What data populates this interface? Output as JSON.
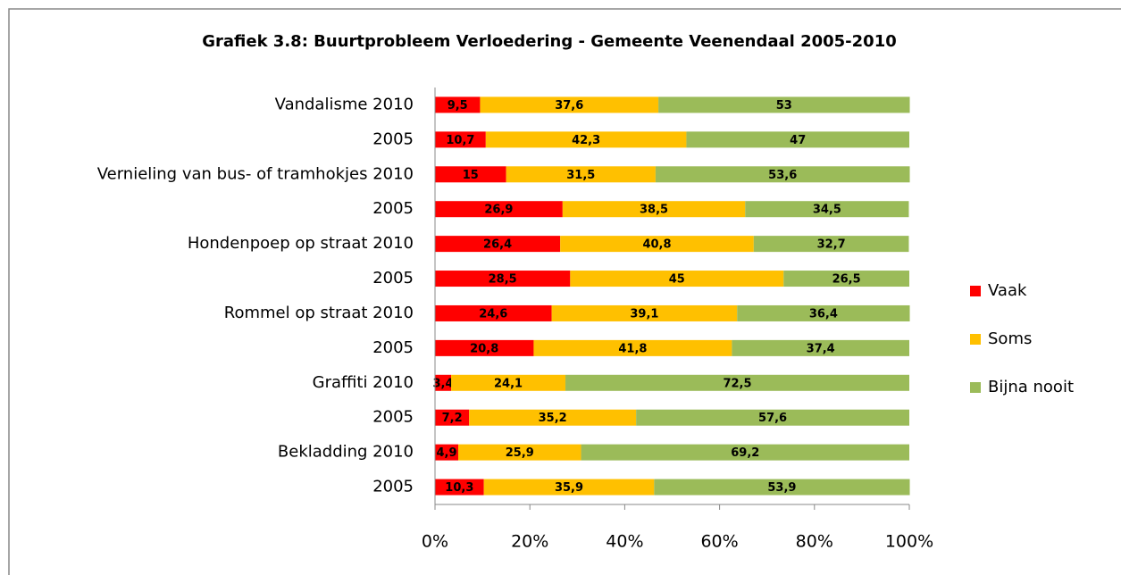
{
  "chart_data": {
    "type": "stacked_bar_horizontal",
    "title": "Grafiek 3.8: Buurtprobleem Verloedering - Gemeente Veenendaal 2005-2010",
    "categories": [
      "Vandalisme 2010",
      "2005",
      "Vernieling van bus- of tramhokjes 2010",
      "2005",
      "Hondenpoep op straat 2010",
      "2005",
      "Rommel op straat 2010",
      "2005",
      "Graffiti 2010",
      "2005",
      "Bekladding 2010",
      "2005"
    ],
    "series": [
      {
        "name": "Vaak",
        "color": "#ff0000",
        "values": [
          9.5,
          10.7,
          15,
          26.9,
          26.4,
          28.5,
          24.6,
          20.8,
          3.4,
          7.2,
          4.9,
          10.3
        ],
        "value_labels": [
          "9,5",
          "10,7",
          "15",
          "26,9",
          "26,4",
          "28,5",
          "24,6",
          "20,8",
          "3,4",
          "7,2",
          "4,9",
          "10,3"
        ]
      },
      {
        "name": "Soms",
        "color": "#ffc000",
        "values": [
          37.6,
          42.3,
          31.5,
          38.5,
          40.8,
          45,
          39.1,
          41.8,
          24.1,
          35.2,
          25.9,
          35.9
        ],
        "value_labels": [
          "37,6",
          "42,3",
          "31,5",
          "38,5",
          "40,8",
          "45",
          "39,1",
          "41,8",
          "24,1",
          "35,2",
          "25,9",
          "35,9"
        ]
      },
      {
        "name": "Bijna nooit",
        "color": "#9bbb59",
        "values": [
          53,
          47,
          53.6,
          34.5,
          32.7,
          26.5,
          36.4,
          37.4,
          72.5,
          57.6,
          69.2,
          53.9
        ],
        "value_labels": [
          "53",
          "47",
          "53,6",
          "34,5",
          "32,7",
          "26,5",
          "36,4",
          "37,4",
          "72,5",
          "57,6",
          "69,2",
          "53,9"
        ]
      }
    ],
    "xlim": [
      0,
      100
    ],
    "xticks": [
      {
        "value": 0,
        "label": "0%"
      },
      {
        "value": 20,
        "label": "20%"
      },
      {
        "value": 40,
        "label": "40%"
      },
      {
        "value": 60,
        "label": "60%"
      },
      {
        "value": 80,
        "label": "80%"
      },
      {
        "value": 100,
        "label": "100%"
      }
    ],
    "legend": "right"
  }
}
